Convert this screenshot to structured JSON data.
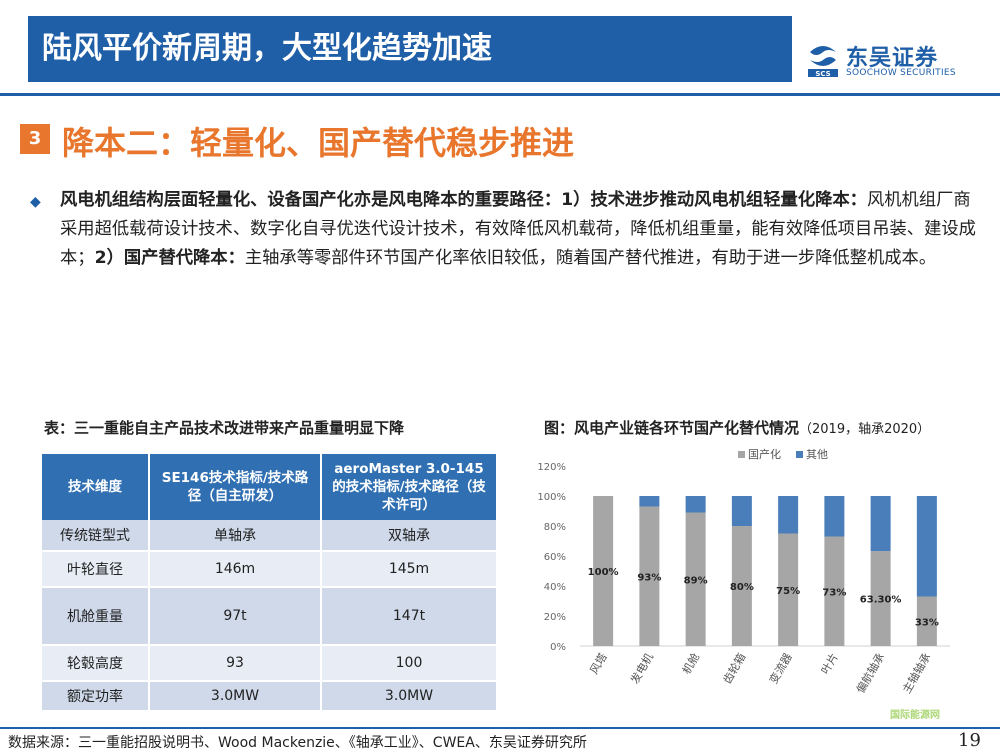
{
  "header": {
    "title": "陆风平价新周期，大型化趋势加速"
  },
  "logo": {
    "cn": "东吴证券",
    "en": "SOOCHOW SECURITIES",
    "mark": "SCS"
  },
  "section": {
    "number": "3",
    "title": "降本二：轻量化、国产替代稳步推进"
  },
  "body": {
    "p1_bold": "风电机组结构层面轻量化、设备国产化亦是风电降本的重要路径：1）技术进步推动风电机组轻量化降本：",
    "p1_text": "风机机组厂商采用超低载荷设计技术、数字化自寻优迭代设计技术，有效降低风机载荷，降低机组重量，能有效降低项目吊装、建设成本；",
    "p2_bold": "2）国产替代降本：",
    "p2_text": "主轴承等零部件环节国产化率依旧较低，随着国产替代推进，有助于进一步降低整机成本。"
  },
  "table": {
    "title": "表：三一重能自主产品技术改进带来产品重量明显下降",
    "headers": [
      "技术维度",
      "SE146技术指标/技术路径（自主研发）",
      "aeroMaster 3.0-145的技术指标/技术路径（技术许可）"
    ],
    "rows": [
      [
        "传统链型式",
        "单轴承",
        "双轴承"
      ],
      [
        "叶轮直径",
        "146m",
        "145m"
      ],
      [
        "机舱重量",
        "97t",
        "147t"
      ],
      [
        "轮毂高度",
        "93",
        "100"
      ],
      [
        "额定功率",
        "3.0MW",
        "3.0MW"
      ]
    ]
  },
  "chart": {
    "title": "图：风电产业链各环节国产化替代情况",
    "subtitle": "（2019，轴承2020）"
  },
  "chart_data": {
    "type": "bar",
    "stacked": true,
    "categories": [
      "风塔",
      "发电机",
      "机舱",
      "齿轮箱",
      "变流器",
      "叶片",
      "偏航轴承",
      "主轴轴承"
    ],
    "series": [
      {
        "name": "国产化",
        "values": [
          100,
          93,
          89,
          80,
          75,
          73,
          63.3,
          33
        ],
        "color": "#a6a6a6"
      },
      {
        "name": "其他",
        "values": [
          0,
          7,
          11,
          20,
          25,
          27,
          36.7,
          67
        ],
        "color": "#4a7ebb"
      }
    ],
    "data_labels": [
      "100%",
      "93%",
      "89%",
      "80%",
      "75%",
      "73%",
      "63.30%",
      "33%"
    ],
    "ylim": [
      0,
      120
    ],
    "yticks": [
      "0%",
      "20%",
      "40%",
      "60%",
      "80%",
      "100%",
      "120%"
    ],
    "legend": "top",
    "grid": false
  },
  "footer": {
    "source": "数据来源：三一重能招股说明书、Wood Mackenzie、《轴承工业》、CWEA、东吴证券研究所",
    "page": "19",
    "watermark": "国际能源网"
  }
}
